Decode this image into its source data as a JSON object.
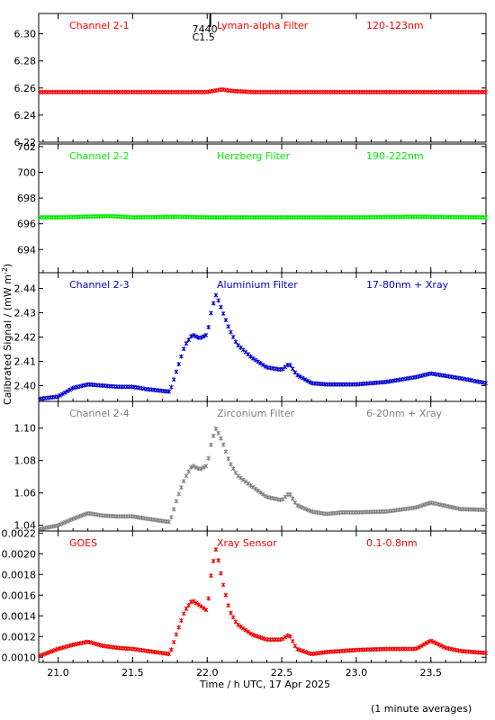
{
  "chart_data": {
    "type": "scatter",
    "xlabel": "Time / h UTC, 17 Apr 2025",
    "ylabel": "Calibrated Signal / (mW m",
    "ylabel_sup": "-2",
    "ylabel_close": ")",
    "x_range": [
      20.87,
      23.87
    ],
    "x_ticks": [
      "21.0",
      "21.5",
      "22.0",
      "22.5",
      "23.0",
      "23.5"
    ],
    "x_tick_values": [
      21.0,
      21.5,
      22.0,
      22.5,
      23.0,
      23.5
    ],
    "flare_marker": {
      "x": 21.9,
      "labels": [
        "7440",
        "C1.5"
      ]
    },
    "note": "(1 minute averages)",
    "panels": [
      {
        "channel": "Channel 2-1",
        "filter": "Lyman-alpha Filter",
        "band": "120-123nm",
        "color": "#ff0000",
        "ylim": [
          6.22,
          6.315
        ],
        "yticks": [
          "6.22",
          "6.24",
          "6.26",
          "6.28",
          "6.30"
        ],
        "ytick_values": [
          6.22,
          6.24,
          6.26,
          6.28,
          6.3
        ],
        "x": [
          20.87,
          21.0,
          21.2,
          21.4,
          21.6,
          21.8,
          22.0,
          22.05,
          22.1,
          22.15,
          22.3,
          22.6,
          23.0,
          23.4,
          23.87
        ],
        "y": [
          6.257,
          6.257,
          6.257,
          6.257,
          6.257,
          6.257,
          6.257,
          6.258,
          6.259,
          6.258,
          6.257,
          6.257,
          6.257,
          6.257,
          6.257
        ]
      },
      {
        "channel": "Channel 2-2",
        "filter": "Herzberg Filter",
        "band": "190-222nm",
        "color": "#00ee00",
        "ylim": [
          692.2,
          702.2
        ],
        "yticks": [
          "694",
          "696",
          "698",
          "700",
          "702"
        ],
        "ytick_values": [
          694,
          696,
          698,
          700,
          702
        ],
        "x": [
          20.87,
          21.0,
          21.35,
          21.5,
          21.8,
          22.0,
          22.3,
          22.6,
          23.0,
          23.4,
          23.87
        ],
        "y": [
          696.5,
          696.5,
          696.6,
          696.5,
          696.55,
          696.5,
          696.5,
          696.5,
          696.5,
          696.55,
          696.5
        ]
      },
      {
        "channel": "Channel 2-3",
        "filter": "Aluminium Filter",
        "band": "17-80nm + Xray",
        "color": "#0000cc",
        "ylim": [
          2.3935,
          2.4465
        ],
        "yticks": [
          "2.40",
          "2.41",
          "2.42",
          "2.43",
          "2.44"
        ],
        "ytick_values": [
          2.4,
          2.41,
          2.42,
          2.43,
          2.44
        ],
        "x": [
          20.87,
          21.0,
          21.1,
          21.2,
          21.3,
          21.4,
          21.5,
          21.6,
          21.75,
          21.8,
          21.85,
          21.9,
          21.95,
          22.0,
          22.03,
          22.06,
          22.1,
          22.15,
          22.2,
          22.3,
          22.4,
          22.5,
          22.55,
          22.6,
          22.7,
          22.8,
          22.9,
          23.0,
          23.2,
          23.4,
          23.5,
          23.6,
          23.7,
          23.87
        ],
        "y": [
          2.3945,
          2.3955,
          2.399,
          2.4005,
          2.4,
          2.3995,
          2.3995,
          2.3985,
          2.3975,
          2.407,
          2.4165,
          2.421,
          2.4195,
          2.421,
          2.4315,
          2.4375,
          2.431,
          2.423,
          2.417,
          2.4115,
          2.4075,
          2.4065,
          2.409,
          2.4045,
          2.401,
          2.4005,
          2.4005,
          2.4005,
          2.4015,
          2.4035,
          2.405,
          2.404,
          2.403,
          2.401
        ]
      },
      {
        "channel": "Channel 2-4",
        "filter": "Zirconium Filter",
        "band": "6-20nm + Xray",
        "color": "#808080",
        "ylim": [
          1.0365,
          1.1165
        ],
        "yticks": [
          "1.04",
          "1.06",
          "1.08",
          "1.10"
        ],
        "ytick_values": [
          1.04,
          1.06,
          1.08,
          1.1
        ],
        "x": [
          20.87,
          21.0,
          21.1,
          21.2,
          21.3,
          21.4,
          21.5,
          21.6,
          21.75,
          21.8,
          21.85,
          21.9,
          21.95,
          22.0,
          22.03,
          22.06,
          22.1,
          22.15,
          22.2,
          22.3,
          22.4,
          22.5,
          22.55,
          22.6,
          22.7,
          22.8,
          22.9,
          23.0,
          23.2,
          23.4,
          23.5,
          23.6,
          23.7,
          23.87
        ],
        "y": [
          1.0375,
          1.04,
          1.044,
          1.0475,
          1.046,
          1.0455,
          1.0455,
          1.044,
          1.042,
          1.057,
          1.069,
          1.077,
          1.0745,
          1.077,
          1.092,
          1.1,
          1.092,
          1.079,
          1.071,
          1.064,
          1.0575,
          1.0555,
          1.06,
          1.0525,
          1.0485,
          1.047,
          1.048,
          1.048,
          1.0485,
          1.051,
          1.054,
          1.052,
          1.05,
          1.0495
        ]
      },
      {
        "channel": "GOES",
        "filter": "Xray Sensor",
        "band": "0.1-0.8nm",
        "color": "#ee0000",
        "ylim": [
          0.00095,
          0.00222
        ],
        "yticks": [
          "0.0010",
          "0.0012",
          "0.0014",
          "0.0016",
          "0.0018",
          "0.0020",
          "0.0022"
        ],
        "ytick_values": [
          0.001,
          0.0012,
          0.0014,
          0.0016,
          0.0018,
          0.002,
          0.0022
        ],
        "x": [
          20.87,
          21.0,
          21.1,
          21.2,
          21.3,
          21.4,
          21.5,
          21.6,
          21.75,
          21.8,
          21.85,
          21.9,
          21.95,
          22.0,
          22.03,
          22.06,
          22.1,
          22.15,
          22.2,
          22.3,
          22.4,
          22.5,
          22.55,
          22.6,
          22.7,
          22.8,
          22.9,
          23.0,
          23.2,
          23.4,
          23.5,
          23.6,
          23.7,
          23.87
        ],
        "y": [
          0.00101,
          0.00108,
          0.00112,
          0.00115,
          0.00111,
          0.00109,
          0.00108,
          0.00106,
          0.00103,
          0.00125,
          0.00145,
          0.00155,
          0.0015,
          0.00145,
          0.00185,
          0.00205,
          0.00175,
          0.00145,
          0.00132,
          0.00122,
          0.00117,
          0.00117,
          0.00122,
          0.00108,
          0.00103,
          0.00105,
          0.00106,
          0.00107,
          0.00108,
          0.00108,
          0.00116,
          0.00109,
          0.00106,
          0.00104
        ]
      }
    ]
  }
}
